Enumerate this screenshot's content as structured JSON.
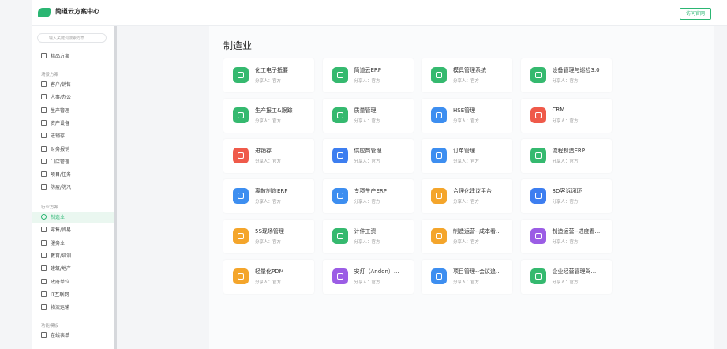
{
  "header": {
    "brand": "简道云方案中心",
    "button": "访问官网"
  },
  "sidebar": {
    "search_placeholder": "输入关键词搜索方案",
    "featured": "精品方案",
    "sections": [
      {
        "title": "场景方案",
        "items": [
          "客户/销售",
          "人事/办公",
          "生产管理",
          "资产设备",
          "进销存",
          "财务报销",
          "门店管理",
          "项目/任务",
          "防疫/防汛"
        ]
      },
      {
        "title": "行业方案",
        "items": [
          "制造业",
          "零售/贸易",
          "服务业",
          "教育/培训",
          "建筑/地产",
          "政府单位",
          "IT互联网",
          "物流运输"
        ]
      },
      {
        "title": "功能模板",
        "items": [
          "在线表单"
        ]
      }
    ],
    "active": "制造业"
  },
  "main": {
    "title": "制造业",
    "cards": [
      {
        "title": "化工电子抵要",
        "sharer": "分享人：官方",
        "color": "#35b96f"
      },
      {
        "title": "简道云ERP",
        "sharer": "分享人：官方",
        "color": "#35b96f"
      },
      {
        "title": "模具管理系统",
        "sharer": "分享人：官方",
        "color": "#35b96f"
      },
      {
        "title": "设备管理与巡检3.0",
        "sharer": "分享人：官方",
        "color": "#35b96f"
      },
      {
        "title": "生产报工&跟踪",
        "sharer": "分享人：官方",
        "color": "#35b96f"
      },
      {
        "title": "质量管理",
        "sharer": "分享人：官方",
        "color": "#35b96f"
      },
      {
        "title": "HSE管理",
        "sharer": "分享人：官方",
        "color": "#3d8ef0"
      },
      {
        "title": "CRM",
        "sharer": "分享人：官方",
        "color": "#ef5a4a"
      },
      {
        "title": "进销存",
        "sharer": "分享人：官方",
        "color": "#ef5a4a"
      },
      {
        "title": "供应商管理",
        "sharer": "分享人：官方",
        "color": "#3d7ef0"
      },
      {
        "title": "订单管理",
        "sharer": "分享人：官方",
        "color": "#3d8ef0"
      },
      {
        "title": "流程制造ERP",
        "sharer": "分享人：官方",
        "color": "#35b96f"
      },
      {
        "title": "离散制造ERP",
        "sharer": "分享人：官方",
        "color": "#3d8ef0"
      },
      {
        "title": "专项生产ERP",
        "sharer": "分享人：官方",
        "color": "#3d8ef0"
      },
      {
        "title": "合理化建议平台",
        "sharer": "分享人：官方",
        "color": "#f4a52b"
      },
      {
        "title": "8D客诉闭环",
        "sharer": "分享人：官方",
        "color": "#3d7ef0"
      },
      {
        "title": "5S现场管理",
        "sharer": "分享人：官方",
        "color": "#f4a52b"
      },
      {
        "title": "计件工资",
        "sharer": "分享人：官方",
        "color": "#35b96f"
      },
      {
        "title": "制造运营--成本看...",
        "sharer": "分享人：官方",
        "color": "#f4a52b"
      },
      {
        "title": "制造运营--进度看...",
        "sharer": "分享人：官方",
        "color": "#9b5de5"
      },
      {
        "title": "轻量化PDM",
        "sharer": "分享人：官方",
        "color": "#f4a52b"
      },
      {
        "title": "安灯（Andon）...",
        "sharer": "分享人：官方",
        "color": "#9b5de5"
      },
      {
        "title": "项目管理--会议追...",
        "sharer": "分享人：官方",
        "color": "#3d8ef0"
      },
      {
        "title": "企业经营管理驾...",
        "sharer": "分享人：官方",
        "color": "#35b96f"
      }
    ]
  }
}
